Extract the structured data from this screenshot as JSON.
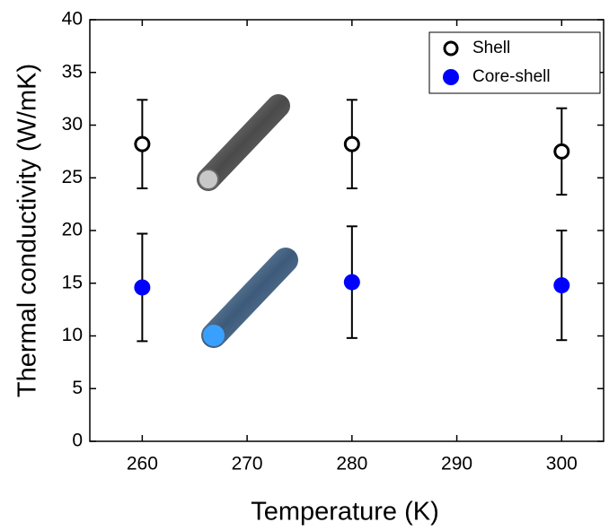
{
  "chart_data": {
    "type": "scatter",
    "x_label": "Temperature (K)",
    "y_label": "Thermal conductivity (W/mK)",
    "xlim": [
      255,
      304
    ],
    "xticks": [
      260,
      270,
      280,
      290,
      300
    ],
    "ylim": [
      0,
      40
    ],
    "yticks": [
      0,
      5,
      10,
      15,
      20,
      25,
      30,
      35,
      40
    ],
    "legend": "upper right",
    "series": [
      {
        "name": "Shell",
        "color": "#000000",
        "filled": false,
        "x": [
          260,
          280,
          300
        ],
        "values": [
          28.2,
          28.2,
          27.5
        ],
        "errors": [
          4.2,
          4.2,
          4.1
        ]
      },
      {
        "name": "Core-shell",
        "color": "#0000ff",
        "filled": true,
        "x": [
          260,
          280,
          300
        ],
        "values": [
          14.6,
          15.1,
          14.8
        ],
        "errors": [
          5.1,
          5.3,
          5.2
        ]
      }
    ]
  }
}
